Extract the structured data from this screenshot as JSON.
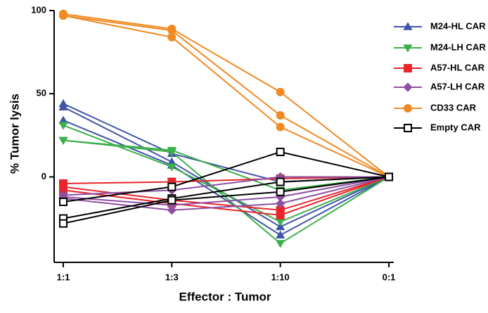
{
  "chart_data": {
    "type": "line",
    "x_label": "Effector : Tumor",
    "y_label": "% Tumor lysis",
    "categories": [
      "1:1",
      "1:3",
      "1:10",
      "0:1"
    ],
    "ylim": [
      -48,
      100
    ],
    "yticks": [
      0,
      50,
      100
    ],
    "legend": "right",
    "series": [
      {
        "name": "M24-HL CAR",
        "color": "#3f55a8",
        "marker": "triangle-up",
        "replicates": [
          [
            44,
            14,
            -3,
            0
          ],
          [
            42,
            9,
            -30,
            0
          ],
          [
            34,
            7,
            -35,
            0
          ]
        ]
      },
      {
        "name": "M24-LH CAR",
        "color": "#3cb04a",
        "marker": "triangle-down",
        "replicates": [
          [
            31,
            6,
            -27,
            0
          ],
          [
            22,
            16,
            -8,
            0
          ],
          [
            22,
            15,
            -40,
            0
          ]
        ]
      },
      {
        "name": "A57-HL CAR",
        "color": "#e8262b",
        "marker": "square",
        "replicates": [
          [
            -4,
            -3,
            -1,
            0
          ],
          [
            -6,
            -14,
            -20,
            0
          ],
          [
            -8,
            -16,
            -23,
            0
          ]
        ]
      },
      {
        "name": "A57-LH CAR",
        "color": "#8e4fa3",
        "marker": "diamond",
        "replicates": [
          [
            -11,
            -8,
            0,
            0
          ],
          [
            -12,
            -17,
            -12,
            0
          ],
          [
            -13,
            -20,
            -16,
            0
          ]
        ]
      },
      {
        "name": "CD33 CAR",
        "color": "#f08a24",
        "marker": "circle",
        "replicates": [
          [
            98,
            89,
            51,
            0
          ],
          [
            97,
            88,
            37,
            0
          ],
          [
            97,
            84,
            30,
            0
          ]
        ]
      },
      {
        "name": "Empty CAR",
        "color": "#000000",
        "marker": "open-square",
        "replicates": [
          [
            -15,
            -6,
            15,
            0
          ],
          [
            -25,
            -13,
            -3,
            0
          ],
          [
            -28,
            -14,
            -9,
            0
          ]
        ]
      }
    ]
  }
}
